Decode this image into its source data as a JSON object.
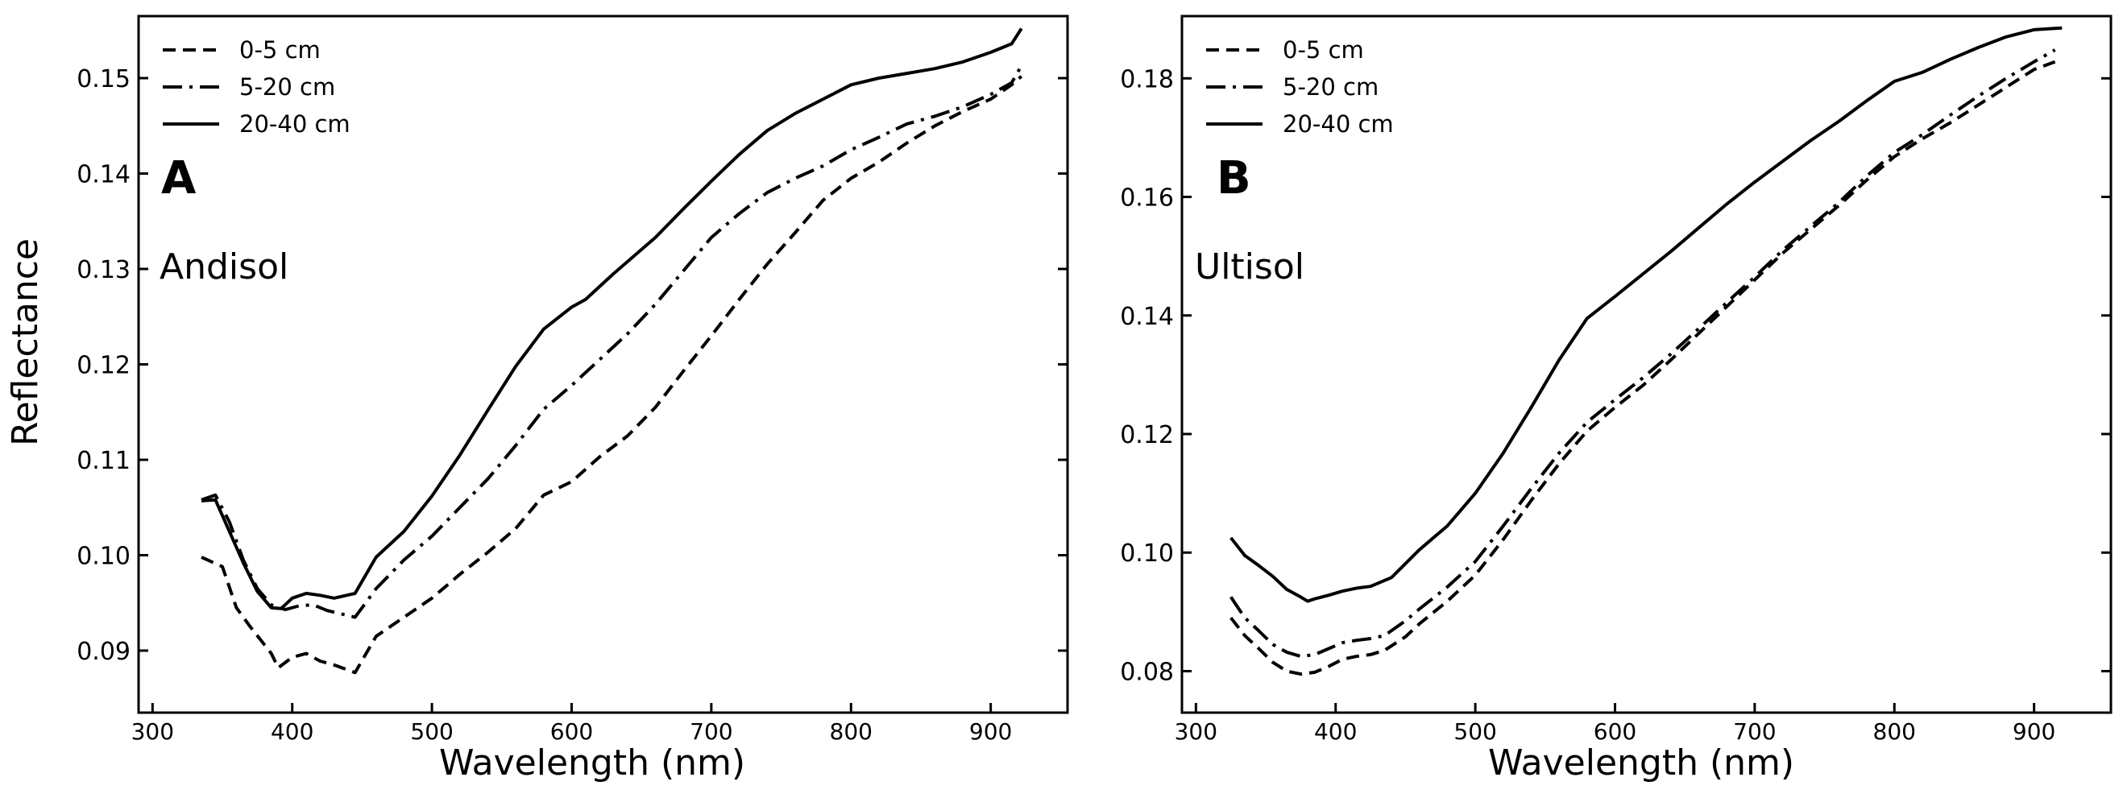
{
  "chart_data": [
    {
      "type": "line",
      "panel_letter": "A",
      "soil": "Andisol",
      "xlabel": "Wavelength (nm)",
      "ylabel": "Reflectance",
      "xlim": [
        290,
        955
      ],
      "ylim": [
        0.0835,
        0.1565
      ],
      "xticks": [
        300,
        400,
        500,
        600,
        700,
        800,
        900
      ],
      "yticks": [
        0.09,
        0.1,
        0.11,
        0.12,
        0.13,
        0.14,
        0.15
      ],
      "ytick_labels": [
        "0.09",
        "0.10",
        "0.11",
        "0.12",
        "0.13",
        "0.14",
        "0.15"
      ],
      "legend_position": "top-left",
      "series": [
        {
          "name": "0-5 cm",
          "style": "dashed",
          "x": [
            335,
            350,
            360,
            370,
            385,
            390,
            400,
            410,
            420,
            430,
            445,
            460,
            480,
            500,
            520,
            540,
            560,
            580,
            600,
            620,
            640,
            660,
            680,
            700,
            720,
            740,
            760,
            780,
            800,
            820,
            840,
            860,
            880,
            900,
            915,
            922
          ],
          "y": [
            0.0998,
            0.0988,
            0.0945,
            0.0925,
            0.0897,
            0.0882,
            0.0893,
            0.0897,
            0.0889,
            0.0885,
            0.0877,
            0.0915,
            0.0935,
            0.0955,
            0.098,
            0.1003,
            0.1028,
            0.1063,
            0.1077,
            0.1103,
            0.1125,
            0.1155,
            0.1193,
            0.123,
            0.1268,
            0.1305,
            0.1338,
            0.1372,
            0.1395,
            0.1412,
            0.1432,
            0.145,
            0.1465,
            0.1478,
            0.1493,
            0.1502
          ]
        },
        {
          "name": "5-20 cm",
          "style": "dash-dot",
          "x": [
            335,
            345,
            355,
            365,
            375,
            385,
            395,
            405,
            415,
            425,
            445,
            460,
            480,
            500,
            520,
            540,
            560,
            580,
            600,
            620,
            640,
            660,
            680,
            700,
            720,
            740,
            760,
            780,
            800,
            820,
            840,
            860,
            880,
            900,
            915,
            922
          ],
          "y": [
            0.1058,
            0.1063,
            0.1035,
            0.0995,
            0.0965,
            0.0948,
            0.0943,
            0.0947,
            0.0948,
            0.0942,
            0.0935,
            0.0965,
            0.0995,
            0.102,
            0.105,
            0.108,
            0.1115,
            0.1153,
            0.1178,
            0.1205,
            0.1232,
            0.1263,
            0.1298,
            0.1333,
            0.1358,
            0.138,
            0.1395,
            0.1408,
            0.1425,
            0.1438,
            0.1452,
            0.146,
            0.147,
            0.1483,
            0.1495,
            0.1513
          ]
        },
        {
          "name": "20-40 cm",
          "style": "solid",
          "x": [
            335,
            345,
            355,
            365,
            375,
            385,
            392,
            400,
            410,
            420,
            430,
            445,
            460,
            480,
            500,
            520,
            540,
            560,
            580,
            600,
            610,
            630,
            660,
            680,
            700,
            720,
            740,
            760,
            780,
            800,
            820,
            840,
            860,
            880,
            900,
            915,
            922
          ],
          "y": [
            0.1057,
            0.1058,
            0.1025,
            0.0992,
            0.0962,
            0.0945,
            0.0944,
            0.0955,
            0.096,
            0.0958,
            0.0955,
            0.096,
            0.0998,
            0.1025,
            0.1062,
            0.1105,
            0.1152,
            0.1198,
            0.1237,
            0.126,
            0.1268,
            0.1295,
            0.1333,
            0.1363,
            0.1392,
            0.142,
            0.1445,
            0.1463,
            0.1478,
            0.1493,
            0.15,
            0.1505,
            0.151,
            0.1517,
            0.1527,
            0.1536,
            0.1552
          ]
        }
      ],
      "legend_labels": [
        "0-5 cm",
        "5-20 cm",
        "20-40 cm"
      ],
      "legend_styles": [
        "dashed",
        "dash-dot",
        "solid"
      ]
    },
    {
      "type": "line",
      "panel_letter": "B",
      "soil": "Ultisol",
      "xlabel": "Wavelength (nm)",
      "ylabel": "",
      "xlim": [
        290,
        955
      ],
      "ylim": [
        0.073,
        0.1905
      ],
      "xticks": [
        300,
        400,
        500,
        600,
        700,
        800,
        900
      ],
      "yticks": [
        0.08,
        0.1,
        0.12,
        0.14,
        0.16,
        0.18
      ],
      "ytick_labels": [
        "0.08",
        "0.10",
        "0.12",
        "0.14",
        "0.16",
        "0.18"
      ],
      "legend_position": "top-left",
      "series": [
        {
          "name": "0-5 cm",
          "style": "dashed",
          "x": [
            325,
            335,
            345,
            355,
            365,
            375,
            385,
            395,
            405,
            415,
            425,
            435,
            450,
            460,
            480,
            500,
            520,
            540,
            560,
            580,
            600,
            620,
            640,
            660,
            680,
            700,
            720,
            740,
            760,
            780,
            800,
            820,
            840,
            860,
            880,
            900,
            915
          ],
          "y": [
            0.089,
            0.086,
            0.0838,
            0.0815,
            0.08,
            0.0795,
            0.0798,
            0.0808,
            0.082,
            0.0825,
            0.0828,
            0.0835,
            0.0858,
            0.088,
            0.0918,
            0.0962,
            0.1022,
            0.1088,
            0.115,
            0.1205,
            0.1245,
            0.1282,
            0.1325,
            0.137,
            0.1415,
            0.146,
            0.1505,
            0.1545,
            0.1585,
            0.1628,
            0.1668,
            0.1698,
            0.1725,
            0.1755,
            0.1785,
            0.1815,
            0.1828
          ]
        },
        {
          "name": "5-20 cm",
          "style": "dash-dot",
          "x": [
            325,
            335,
            345,
            355,
            365,
            375,
            385,
            395,
            405,
            415,
            425,
            435,
            450,
            460,
            480,
            500,
            520,
            540,
            560,
            580,
            600,
            620,
            640,
            660,
            680,
            700,
            720,
            740,
            760,
            780,
            800,
            820,
            840,
            860,
            880,
            900,
            915
          ],
          "y": [
            0.0925,
            0.089,
            0.0868,
            0.0845,
            0.0832,
            0.0825,
            0.0828,
            0.0838,
            0.0848,
            0.0852,
            0.0855,
            0.086,
            0.0885,
            0.0905,
            0.0942,
            0.0985,
            0.1045,
            0.1108,
            0.1168,
            0.122,
            0.1258,
            0.1295,
            0.1335,
            0.1378,
            0.1422,
            0.1465,
            0.151,
            0.155,
            0.159,
            0.1635,
            0.1675,
            0.1705,
            0.1738,
            0.177,
            0.18,
            0.1828,
            0.1848
          ]
        },
        {
          "name": "20-40 cm",
          "style": "solid",
          "x": [
            325,
            335,
            345,
            355,
            365,
            375,
            380,
            385,
            395,
            405,
            415,
            425,
            440,
            460,
            480,
            500,
            520,
            540,
            560,
            580,
            600,
            620,
            640,
            660,
            680,
            700,
            720,
            740,
            760,
            780,
            800,
            820,
            840,
            860,
            880,
            900,
            920
          ],
          "y": [
            0.1025,
            0.0995,
            0.0978,
            0.096,
            0.0938,
            0.0925,
            0.0918,
            0.0922,
            0.0928,
            0.0935,
            0.094,
            0.0943,
            0.0958,
            0.1005,
            0.1045,
            0.11,
            0.1168,
            0.1245,
            0.1325,
            0.1395,
            0.1432,
            0.147,
            0.1508,
            0.1548,
            0.1588,
            0.1625,
            0.166,
            0.1695,
            0.1727,
            0.1762,
            0.1795,
            0.181,
            0.1832,
            0.1852,
            0.187,
            0.1882,
            0.1885
          ]
        }
      ],
      "legend_labels": [
        "0-5 cm",
        "5-20 cm",
        "20-40 cm"
      ],
      "legend_styles": [
        "dashed",
        "dash-dot",
        "solid"
      ]
    }
  ]
}
